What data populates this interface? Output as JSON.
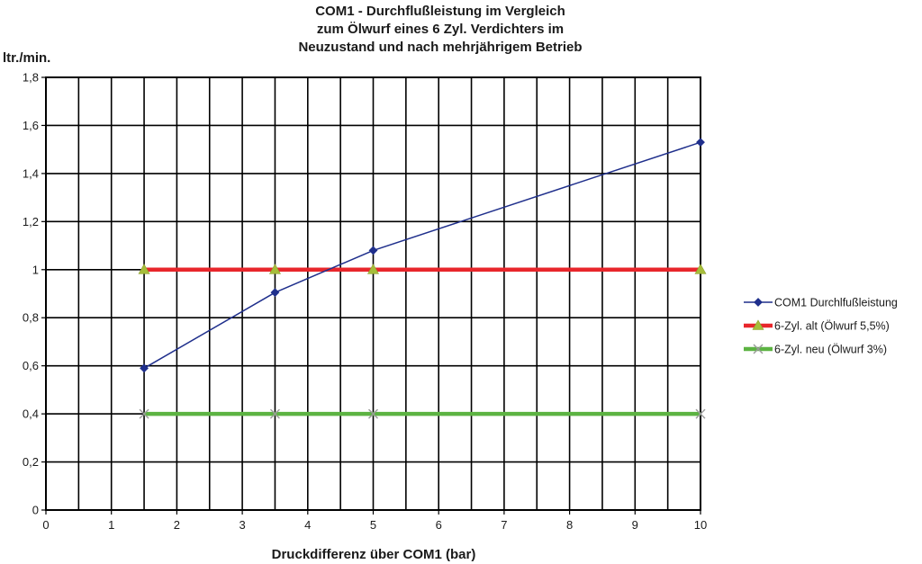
{
  "chart_data": {
    "type": "line",
    "title_lines": [
      "COM1 - Durchflußleistung im Vergleich",
      "zum Ölwurf eines 6 Zyl. Verdichters im",
      "Neuzustand und nach mehrjährigem Betrieb"
    ],
    "ylabel": "ltr./min.",
    "xlabel": "Druckdifferenz über COM1  (bar)",
    "xlim": [
      0,
      10
    ],
    "ylim": [
      0,
      1.8
    ],
    "x_ticks": [
      "0",
      "1",
      "2",
      "3",
      "4",
      "5",
      "6",
      "7",
      "8",
      "9",
      "10"
    ],
    "y_ticks": [
      "0",
      "0,2",
      "0,4",
      "0,6",
      "0,8",
      "1",
      "1,2",
      "1,4",
      "1,6",
      "1,8"
    ],
    "grid": {
      "x_step": 0.5,
      "y_step": 0.2,
      "color": "#000000"
    },
    "legend_position": "right",
    "series": [
      {
        "name": "COM1 Durchlfußleistung",
        "color": "#1f2f8c",
        "marker": "diamond",
        "points": [
          [
            1.5,
            0.59
          ],
          [
            3.5,
            0.905
          ],
          [
            5,
            1.08
          ],
          [
            10,
            1.53
          ]
        ]
      },
      {
        "name": "6-Zyl. alt (Ölwurf 5,5%)",
        "color": "#e8262b",
        "marker": "triangle",
        "marker_color": "#a6bd3a",
        "points": [
          [
            1.5,
            1.0
          ],
          [
            3.5,
            1.0
          ],
          [
            5,
            1.0
          ],
          [
            10,
            1.0
          ]
        ]
      },
      {
        "name": "6-Zyl. neu (Ölwurf 3%)",
        "color": "#5cb342",
        "marker": "x",
        "marker_color": "#9a9a9a",
        "points": [
          [
            1.5,
            0.4
          ],
          [
            3.5,
            0.4
          ],
          [
            5,
            0.4
          ],
          [
            10,
            0.4
          ]
        ]
      }
    ]
  }
}
